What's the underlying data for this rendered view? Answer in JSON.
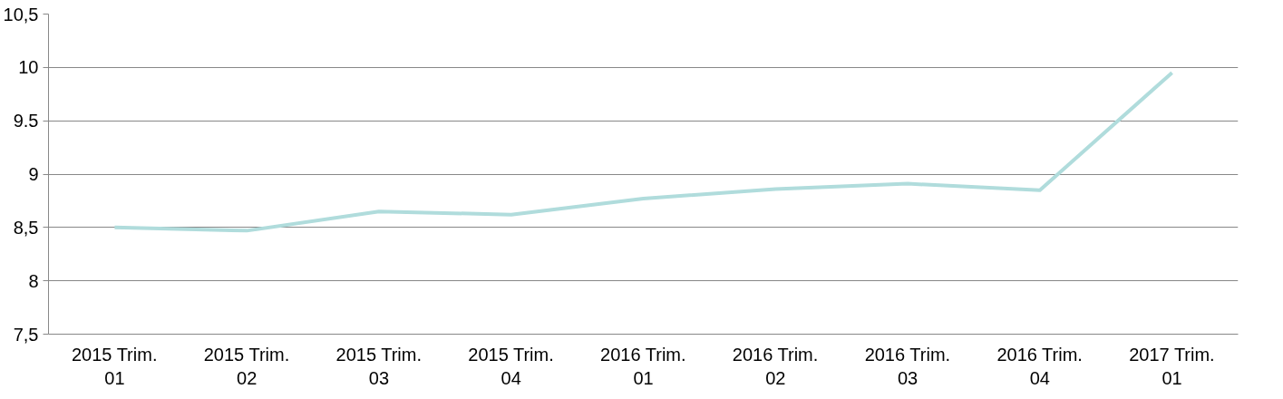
{
  "chart_data": {
    "type": "line",
    "categories": [
      "2015 Trim. 01",
      "2015 Trim. 02",
      "2015 Trim. 03",
      "2015 Trim. 04",
      "2016 Trim. 01",
      "2016 Trim. 02",
      "2016 Trim. 03",
      "2016 Trim. 04",
      "2017 Trim. 01"
    ],
    "series": [
      {
        "color": "#b0dcdc",
        "values": [
          8.5,
          8.47,
          8.65,
          8.62,
          8.77,
          8.86,
          8.91,
          8.85,
          9.95
        ]
      }
    ],
    "ylim": [
      7.5,
      10.5
    ],
    "yticks": [
      {
        "value": 7.5,
        "label": "7,5"
      },
      8,
      {
        "value": 8.5,
        "label": "8,5"
      },
      9,
      {
        "value": 9.5,
        "label": "9.5"
      },
      10,
      {
        "value": 10.5,
        "label": "10,5"
      }
    ],
    "grid": "y",
    "marker": "none",
    "line_style": "solid"
  }
}
